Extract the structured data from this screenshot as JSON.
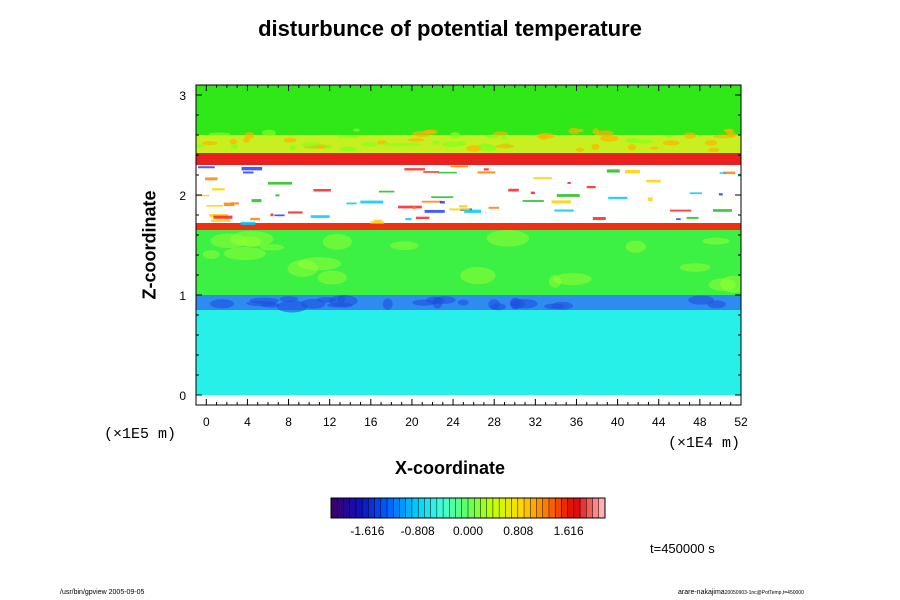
{
  "chart_data": {
    "type": "heatmap",
    "title": "disturbunce of potential temperature",
    "xlabel": "X-coordinate",
    "ylabel": "Z-coordinate",
    "x_unit": "(×1E4 m)",
    "z_unit": "(×1E5 m)",
    "xlim": [
      -1,
      52
    ],
    "ylim": [
      -0.1,
      3.1
    ],
    "x_ticks": [
      0,
      4,
      8,
      12,
      16,
      20,
      24,
      28,
      32,
      36,
      40,
      44,
      48,
      52
    ],
    "y_ticks": [
      0,
      1,
      2,
      3
    ],
    "colorbar": {
      "ticks": [
        "-1.616",
        "-0.808",
        "0.000",
        "0.808",
        "1.616"
      ],
      "range": [
        -2.2,
        2.2
      ],
      "colors": [
        "#3a0070",
        "#1010c0",
        "#0060ff",
        "#00c8ff",
        "#40ffd8",
        "#60ff60",
        "#c8ff00",
        "#ffd800",
        "#ff7000",
        "#e00000",
        "#ffb0b0"
      ]
    },
    "layers": [
      {
        "z_from": 0.0,
        "z_to": 0.85,
        "value": -0.6,
        "description_color": "#26f0e8"
      },
      {
        "z_from": 0.85,
        "z_to": 1.0,
        "value": -1.1,
        "description_color": "#2e8cf0"
      },
      {
        "z_from": 1.0,
        "z_to": 1.65,
        "value": 0.2,
        "description_color": "#3df044"
      },
      {
        "z_from": 1.65,
        "z_to": 1.72,
        "value": 1.6,
        "description_color": "#f03010"
      },
      {
        "z_from": 1.72,
        "z_to": 2.3,
        "value": 2.5,
        "description_color": "#ffffff"
      },
      {
        "z_from": 2.3,
        "z_to": 2.42,
        "value": 1.5,
        "description_color": "#e82020"
      },
      {
        "z_from": 2.42,
        "z_to": 2.6,
        "value": 0.5,
        "description_color": "#c8f020"
      },
      {
        "z_from": 2.6,
        "z_to": 3.1,
        "value": 0.15,
        "description_color": "#30e818"
      }
    ],
    "time_label": "t=450000 s"
  },
  "footer": {
    "left": "/usr/bin/gpview 2005-09-05",
    "right_main": "arare-nakajima",
    "right_small": "20050903-1nc@PotTemp,t=450000"
  }
}
